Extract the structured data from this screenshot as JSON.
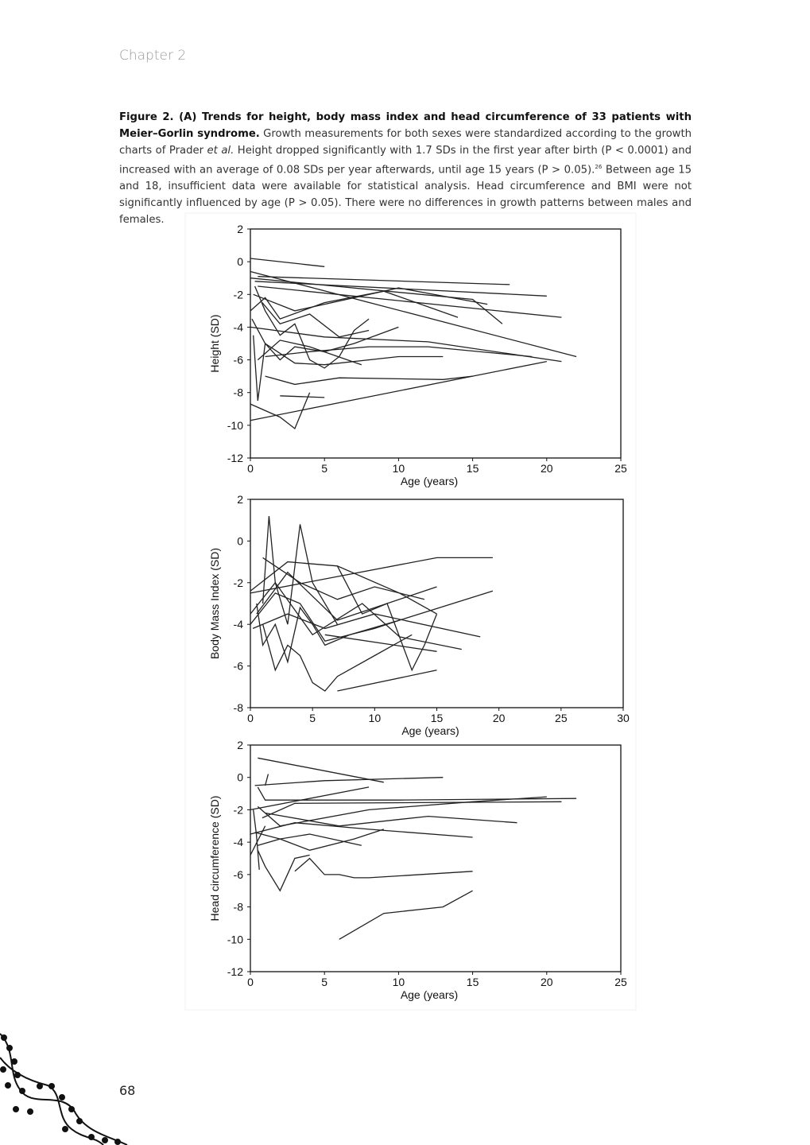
{
  "header": "Chapter 2",
  "caption": {
    "label": "Figure 2. (A) Trends for height, body mass index and head circumference of 33 patients with Meier–Gorlin syndrome.",
    "text_1": "Growth measurements for both sexes were standardized according to the growth charts of Prader",
    "italic": "et al.",
    "text_2": "Height dropped significantly with 1.7 SDs in the first year after birth (P < 0.0001) and increased with an average of 0.08 SDs per year afterwards, until age 15 years (P > 0.05).",
    "ref": "26",
    "text_3": "Between age 15 and 18, insufficient data were available for statistical analysis. Head circumference and BMI were not significantly influenced by age (P > 0.05). There were no differences in growth patterns between males and females."
  },
  "page_number": "68",
  "chart_data": [
    {
      "type": "line",
      "ylabel": "Height (SD)",
      "xlabel": "Age (years)",
      "xlim": [
        0,
        25
      ],
      "ylim": [
        -12,
        2
      ],
      "xticks": [
        0,
        5,
        10,
        15,
        20,
        25
      ],
      "yticks": [
        2,
        0,
        -2,
        -4,
        -6,
        -8,
        -10,
        -12
      ],
      "series": [
        {
          "color": "#222",
          "x": [
            0,
            5
          ],
          "values": [
            0.2,
            -0.3
          ]
        },
        {
          "color": "#222",
          "x": [
            0,
            22
          ],
          "values": [
            -0.6,
            -5.8
          ]
        },
        {
          "color": "#222",
          "x": [
            0.5,
            17.5
          ],
          "values": [
            -0.9,
            -1.4
          ]
        },
        {
          "color": "#222",
          "x": [
            0,
            15,
            17
          ],
          "values": [
            -1,
            -2.3,
            -3.8
          ]
        },
        {
          "color": "#222",
          "x": [
            0.3,
            20
          ],
          "values": [
            -1.2,
            -2.1
          ]
        },
        {
          "color": "#222",
          "x": [
            0.5,
            21
          ],
          "values": [
            -1.5,
            -3.4
          ]
        },
        {
          "color": "#222",
          "x": [
            0.2,
            3,
            10,
            16
          ],
          "values": [
            -2,
            -3,
            -1.6,
            -2.6
          ]
        },
        {
          "color": "#222",
          "x": [
            0,
            1,
            2,
            5,
            9,
            14
          ],
          "values": [
            -3,
            -2.2,
            -3.5,
            -2.5,
            -1.8,
            -3.4
          ]
        },
        {
          "color": "#222",
          "x": [
            0,
            5,
            12,
            21
          ],
          "values": [
            -4,
            -4.6,
            -4.9,
            -6.1
          ]
        },
        {
          "color": "#222",
          "x": [
            0.2,
            0.5,
            1,
            2,
            3,
            5,
            7,
            10
          ],
          "values": [
            -4.5,
            -8.5,
            -5,
            -6,
            -5.2,
            -5.5,
            -5,
            -4
          ]
        },
        {
          "color": "#222",
          "x": [
            0.5,
            2,
            4,
            7.5
          ],
          "values": [
            -6,
            -4.8,
            -5.2,
            -6.3
          ]
        },
        {
          "color": "#222",
          "x": [
            1,
            3,
            6,
            13,
            15
          ],
          "values": [
            -7,
            -7.5,
            -7.1,
            -7.2,
            -7
          ]
        },
        {
          "color": "#222",
          "x": [
            2,
            5
          ],
          "values": [
            -8.2,
            -8.3
          ]
        },
        {
          "color": "#222",
          "x": [
            0,
            2,
            3,
            4
          ],
          "values": [
            -8.7,
            -9.5,
            -10.2,
            -8
          ]
        },
        {
          "color": "#222",
          "x": [
            0,
            20
          ],
          "values": [
            -9.7,
            -6.1
          ]
        },
        {
          "color": "#222",
          "x": [
            0.3,
            1,
            2,
            3,
            4,
            5,
            6,
            7,
            8
          ],
          "values": [
            -1.5,
            -3,
            -4.5,
            -3.8,
            -6,
            -6.5,
            -5.8,
            -4.2,
            -3.5
          ]
        },
        {
          "color": "#222",
          "x": [
            0.8,
            2,
            4,
            6,
            8
          ],
          "values": [
            -2.5,
            -3.8,
            -3.2,
            -4.6,
            -4.2
          ]
        },
        {
          "color": "#222",
          "x": [
            1,
            4,
            8,
            12,
            19
          ],
          "values": [
            -5.8,
            -5.5,
            -5.2,
            -5.2,
            -5.8
          ]
        },
        {
          "color": "#222",
          "x": [
            0.1,
            1,
            3,
            5,
            10,
            13
          ],
          "values": [
            -3.5,
            -5,
            -6.2,
            -6.3,
            -5.8,
            -5.8
          ]
        }
      ]
    },
    {
      "type": "line",
      "ylabel": "Body Mass Index (SD)",
      "xlabel": "Age (years)",
      "xlim": [
        0,
        30
      ],
      "ylim": [
        -8,
        2
      ],
      "xticks": [
        0,
        5,
        10,
        15,
        20,
        25,
        30
      ],
      "yticks": [
        2,
        0,
        -2,
        -4,
        -6,
        -8
      ],
      "series": [
        {
          "color": "#222",
          "x": [
            1,
            1.5,
            2,
            3,
            4,
            5,
            7
          ],
          "values": [
            -3,
            1.2,
            -2,
            -4,
            0.8,
            -2,
            -4
          ]
        },
        {
          "color": "#222",
          "x": [
            0,
            3,
            7,
            12,
            15
          ],
          "values": [
            -2.4,
            -1,
            -1.2,
            -2.5,
            -3.5
          ]
        },
        {
          "color": "#222",
          "x": [
            0,
            15,
            19.5
          ],
          "values": [
            -2.5,
            -0.8,
            -0.8
          ]
        },
        {
          "color": "#222",
          "x": [
            0.5,
            3,
            7,
            15
          ],
          "values": [
            -3.5,
            -1.5,
            -3.8,
            -2.2
          ]
        },
        {
          "color": "#222",
          "x": [
            1,
            2,
            3,
            4,
            5,
            6,
            7,
            10,
            13
          ],
          "values": [
            -4,
            -6.2,
            -5,
            -5.5,
            -6.8,
            -7.2,
            -6.5,
            -5.5,
            -4.5
          ]
        },
        {
          "color": "#222",
          "x": [
            7,
            15
          ],
          "values": [
            -7.2,
            -6.2
          ]
        },
        {
          "color": "#222",
          "x": [
            6,
            15
          ],
          "values": [
            -4.5,
            -5.3
          ]
        },
        {
          "color": "#222",
          "x": [
            0,
            2,
            4,
            6,
            8,
            12,
            19.5
          ],
          "values": [
            -4,
            -2.5,
            -3,
            -4.8,
            -4.5,
            -3.8,
            -2.4
          ]
        },
        {
          "color": "#222",
          "x": [
            7,
            9,
            11,
            13,
            14,
            15
          ],
          "values": [
            -1.2,
            -3.5,
            -3,
            -6.2,
            -5,
            -3.5
          ]
        },
        {
          "color": "#222",
          "x": [
            0.5,
            1,
            2,
            3,
            4,
            5,
            6,
            8,
            10,
            12
          ],
          "values": [
            -3,
            -5,
            -4,
            -5.8,
            -3.2,
            -4,
            -5,
            -4.5,
            -4.2,
            -3.8
          ]
        },
        {
          "color": "#222",
          "x": [
            1,
            4,
            7,
            10,
            14
          ],
          "values": [
            -0.8,
            -2,
            -2.8,
            -2.2,
            -2.8
          ]
        },
        {
          "color": "#222",
          "x": [
            0.2,
            3,
            6,
            10,
            18.5
          ],
          "values": [
            -4.2,
            -3.5,
            -4.2,
            -3.5,
            -4.6
          ]
        },
        {
          "color": "#222",
          "x": [
            0,
            2,
            5,
            9,
            12,
            17
          ],
          "values": [
            -3.5,
            -2,
            -4.5,
            -3,
            -4.6,
            -5.2
          ]
        }
      ]
    },
    {
      "type": "line",
      "ylabel": "Head circumference (SD)",
      "xlabel": "Age (years)",
      "xlim": [
        0,
        25
      ],
      "ylim": [
        -12,
        2
      ],
      "xticks": [
        0,
        5,
        10,
        15,
        20,
        25
      ],
      "yticks": [
        2,
        0,
        -2,
        -4,
        -6,
        -8,
        -10,
        -12
      ],
      "series": [
        {
          "color": "#222",
          "x": [
            0.5,
            9
          ],
          "values": [
            1.2,
            -0.3
          ]
        },
        {
          "color": "#222",
          "x": [
            1,
            1.2
          ],
          "values": [
            -0.5,
            0.2
          ]
        },
        {
          "color": "#222",
          "x": [
            0.3,
            5,
            13
          ],
          "values": [
            -0.5,
            -0.2,
            0
          ]
        },
        {
          "color": "#222",
          "x": [
            0,
            8
          ],
          "values": [
            -2,
            -0.6
          ]
        },
        {
          "color": "#222",
          "x": [
            0.5,
            1,
            10,
            22
          ],
          "values": [
            -0.6,
            -1.4,
            -1.4,
            -1.3
          ]
        },
        {
          "color": "#222",
          "x": [
            0.8,
            3,
            21
          ],
          "values": [
            -2.5,
            -1.6,
            -1.5
          ]
        },
        {
          "color": "#222",
          "x": [
            0.5,
            2,
            8,
            15,
            20
          ],
          "values": [
            -1.8,
            -3,
            -2,
            -1.5,
            -1.2
          ]
        },
        {
          "color": "#222",
          "x": [
            1,
            6,
            12,
            18
          ],
          "values": [
            -2.2,
            -3,
            -2.4,
            -2.8
          ]
        },
        {
          "color": "#222",
          "x": [
            0,
            3,
            8,
            15
          ],
          "values": [
            -3.5,
            -2.8,
            -3.2,
            -3.7
          ]
        },
        {
          "color": "#222",
          "x": [
            0.5,
            2,
            4,
            7,
            9
          ],
          "values": [
            -4.2,
            -3.8,
            -4.5,
            -3.8,
            -3.2
          ]
        },
        {
          "color": "#222",
          "x": [
            0.3,
            2,
            4,
            7.5
          ],
          "values": [
            -3.4,
            -3.8,
            -3.5,
            -4.2
          ]
        },
        {
          "color": "#222",
          "x": [
            0.5,
            1,
            2,
            3,
            4
          ],
          "values": [
            -4.5,
            -5.5,
            -7,
            -5,
            -4.8
          ]
        },
        {
          "color": "#222",
          "x": [
            3,
            4,
            5,
            6,
            7,
            8,
            15
          ],
          "values": [
            -5.8,
            -5,
            -6,
            -6,
            -6.2,
            -6.2,
            -5.8
          ]
        },
        {
          "color": "#222",
          "x": [
            6,
            9,
            13,
            15
          ],
          "values": [
            -10,
            -8.4,
            -8,
            -7
          ]
        },
        {
          "color": "#222",
          "x": [
            0,
            1
          ],
          "values": [
            -4.8,
            -3
          ]
        },
        {
          "color": "#222",
          "x": [
            0.2,
            0.4,
            0.6
          ],
          "values": [
            -2,
            -3.5,
            -5.7
          ]
        }
      ]
    }
  ]
}
